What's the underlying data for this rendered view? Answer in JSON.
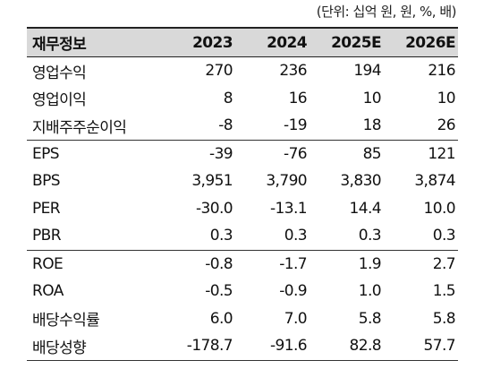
{
  "unit_note": "(단위: 십억 원, 원, %, 배)",
  "header": {
    "label": "재무정보",
    "years": [
      "2023",
      "2024",
      "2025E",
      "2026E"
    ]
  },
  "groups": [
    {
      "rows": [
        {
          "label": "영업수익",
          "values": [
            "270",
            "236",
            "194",
            "216"
          ]
        },
        {
          "label": "영업이익",
          "values": [
            "8",
            "16",
            "10",
            "10"
          ]
        },
        {
          "label": "지배주주순이익",
          "values": [
            "-8",
            "-19",
            "18",
            "26"
          ]
        }
      ]
    },
    {
      "rows": [
        {
          "label": "EPS",
          "values": [
            "-39",
            "-76",
            "85",
            "121"
          ]
        },
        {
          "label": "BPS",
          "values": [
            "3,951",
            "3,790",
            "3,830",
            "3,874"
          ]
        },
        {
          "label": "PER",
          "values": [
            "-30.0",
            "-13.1",
            "14.4",
            "10.0"
          ]
        },
        {
          "label": "PBR",
          "values": [
            "0.3",
            "0.3",
            "0.3",
            "0.3"
          ]
        }
      ]
    },
    {
      "rows": [
        {
          "label": "ROE",
          "values": [
            "-0.8",
            "-1.7",
            "1.9",
            "2.7"
          ]
        },
        {
          "label": "ROA",
          "values": [
            "-0.5",
            "-0.9",
            "1.0",
            "1.5"
          ]
        },
        {
          "label": "배당수익률",
          "values": [
            "6.0",
            "7.0",
            "5.8",
            "5.8"
          ]
        },
        {
          "label": "배당성향",
          "values": [
            "-178.7",
            "-91.6",
            "82.8",
            "57.7"
          ]
        }
      ]
    }
  ]
}
